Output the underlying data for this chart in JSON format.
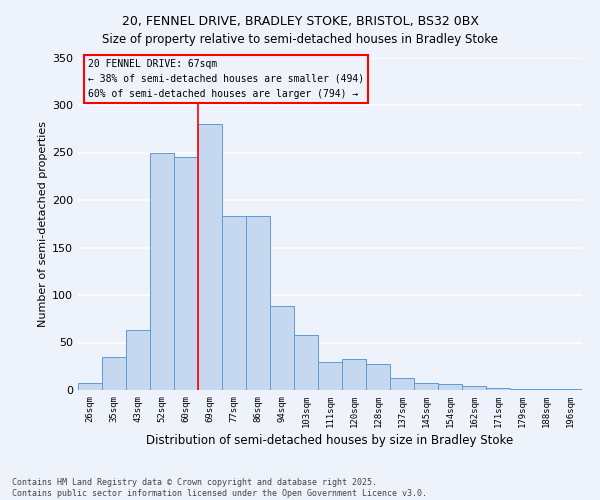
{
  "title_line1": "20, FENNEL DRIVE, BRADLEY STOKE, BRISTOL, BS32 0BX",
  "title_line2": "Size of property relative to semi-detached houses in Bradley Stoke",
  "xlabel": "Distribution of semi-detached houses by size in Bradley Stoke",
  "ylabel": "Number of semi-detached properties",
  "bar_labels": [
    "26sqm",
    "35sqm",
    "43sqm",
    "52sqm",
    "60sqm",
    "69sqm",
    "77sqm",
    "86sqm",
    "94sqm",
    "103sqm",
    "111sqm",
    "120sqm",
    "128sqm",
    "137sqm",
    "145sqm",
    "154sqm",
    "162sqm",
    "171sqm",
    "179sqm",
    "188sqm",
    "196sqm"
  ],
  "bar_values": [
    7,
    35,
    63,
    250,
    245,
    280,
    183,
    183,
    88,
    58,
    30,
    33,
    27,
    13,
    7,
    6,
    4,
    2,
    1,
    1,
    1
  ],
  "bar_color": "#c5d8f0",
  "bar_edge_color": "#5b9bd5",
  "ylim": [
    0,
    350
  ],
  "yticks": [
    0,
    50,
    100,
    150,
    200,
    250,
    300,
    350
  ],
  "annotation_title": "20 FENNEL DRIVE: 67sqm",
  "annotation_line1": "← 38% of semi-detached houses are smaller (494)",
  "annotation_line2": "60% of semi-detached houses are larger (794) →",
  "background_color": "#eef3fb",
  "grid_color": "#ffffff",
  "footer_line1": "Contains HM Land Registry data © Crown copyright and database right 2025.",
  "footer_line2": "Contains public sector information licensed under the Open Government Licence v3.0."
}
